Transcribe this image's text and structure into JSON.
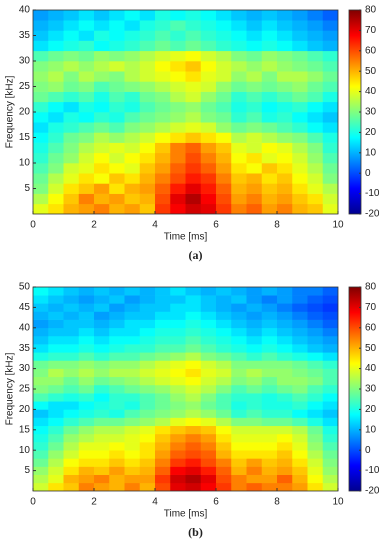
{
  "chart_data": [
    {
      "type": "heatmap",
      "caption": "(a)",
      "xlabel": "Time [ms]",
      "ylabel": "Frequency [kHz]",
      "colormap": "jet",
      "xlim": [
        0,
        10
      ],
      "xticks": [
        0,
        2,
        4,
        6,
        8,
        10
      ],
      "ylim": [
        0,
        40
      ],
      "yticks": [
        5,
        10,
        15,
        20,
        25,
        30,
        35,
        40
      ],
      "zlim": [
        -20,
        80
      ],
      "zticks": [
        -20,
        -10,
        0,
        10,
        20,
        30,
        40,
        50,
        60,
        70,
        80
      ],
      "x": [
        0.25,
        0.75,
        1.25,
        1.75,
        2.25,
        2.75,
        3.25,
        3.75,
        4.25,
        4.75,
        5.25,
        5.75,
        6.25,
        6.75,
        7.25,
        7.75,
        8.25,
        8.75,
        9.25,
        9.75
      ],
      "y": [
        1,
        3,
        5,
        7,
        9,
        11,
        13,
        15,
        17,
        19,
        21,
        23,
        25,
        27,
        29,
        31,
        33,
        35,
        37,
        39
      ],
      "z": [
        [
          40,
          45,
          50,
          52,
          55,
          50,
          52,
          48,
          62,
          68,
          72,
          70,
          62,
          55,
          58,
          52,
          55,
          50,
          48,
          40
        ],
        [
          35,
          42,
          48,
          55,
          50,
          52,
          48,
          50,
          60,
          70,
          75,
          68,
          60,
          52,
          55,
          50,
          52,
          48,
          45,
          38
        ],
        [
          30,
          38,
          45,
          48,
          52,
          45,
          50,
          52,
          58,
          65,
          70,
          65,
          58,
          50,
          52,
          48,
          50,
          45,
          40,
          35
        ],
        [
          28,
          35,
          40,
          45,
          42,
          48,
          45,
          50,
          55,
          60,
          65,
          62,
          55,
          48,
          50,
          45,
          48,
          42,
          38,
          30
        ],
        [
          25,
          30,
          38,
          40,
          45,
          42,
          40,
          48,
          52,
          58,
          62,
          58,
          52,
          45,
          42,
          48,
          45,
          40,
          35,
          28
        ],
        [
          22,
          28,
          32,
          38,
          42,
          38,
          42,
          45,
          50,
          55,
          60,
          55,
          50,
          42,
          45,
          40,
          42,
          38,
          32,
          25
        ],
        [
          20,
          25,
          30,
          35,
          38,
          40,
          38,
          42,
          48,
          55,
          58,
          52,
          48,
          40,
          38,
          42,
          40,
          35,
          30,
          22
        ],
        [
          18,
          22,
          28,
          30,
          35,
          32,
          35,
          38,
          42,
          45,
          48,
          45,
          42,
          35,
          38,
          35,
          32,
          30,
          25,
          20
        ],
        [
          15,
          20,
          22,
          25,
          28,
          25,
          30,
          32,
          35,
          38,
          40,
          38,
          32,
          28,
          30,
          28,
          25,
          22,
          18,
          15
        ],
        [
          18,
          15,
          20,
          18,
          22,
          20,
          25,
          28,
          30,
          32,
          35,
          30,
          28,
          22,
          25,
          20,
          22,
          18,
          15,
          12
        ],
        [
          22,
          18,
          15,
          20,
          18,
          22,
          20,
          25,
          28,
          30,
          32,
          28,
          25,
          20,
          22,
          18,
          20,
          22,
          18,
          15
        ],
        [
          28,
          25,
          22,
          25,
          20,
          25,
          22,
          28,
          30,
          35,
          38,
          32,
          28,
          22,
          25,
          22,
          25,
          28,
          25,
          20
        ],
        [
          30,
          32,
          28,
          30,
          25,
          28,
          30,
          32,
          35,
          38,
          40,
          38,
          32,
          28,
          30,
          28,
          30,
          32,
          28,
          25
        ],
        [
          32,
          35,
          30,
          35,
          32,
          30,
          35,
          38,
          40,
          42,
          45,
          40,
          38,
          32,
          35,
          30,
          35,
          35,
          32,
          28
        ],
        [
          30,
          32,
          35,
          32,
          35,
          38,
          35,
          38,
          42,
          45,
          48,
          42,
          38,
          35,
          32,
          35,
          32,
          30,
          28,
          25
        ],
        [
          25,
          28,
          30,
          28,
          32,
          30,
          32,
          35,
          38,
          40,
          42,
          38,
          35,
          30,
          28,
          32,
          30,
          28,
          25,
          22
        ],
        [
          15,
          18,
          20,
          22,
          18,
          20,
          22,
          25,
          28,
          25,
          28,
          25,
          22,
          20,
          18,
          20,
          18,
          15,
          12,
          10
        ],
        [
          12,
          15,
          18,
          15,
          20,
          18,
          20,
          22,
          25,
          22,
          25,
          22,
          20,
          18,
          15,
          18,
          15,
          12,
          10,
          8
        ],
        [
          10,
          12,
          15,
          18,
          15,
          18,
          15,
          20,
          22,
          25,
          22,
          20,
          18,
          15,
          12,
          15,
          12,
          10,
          8,
          5
        ],
        [
          8,
          10,
          12,
          15,
          12,
          15,
          18,
          15,
          20,
          18,
          20,
          18,
          15,
          12,
          10,
          12,
          10,
          8,
          5,
          2
        ]
      ]
    },
    {
      "type": "heatmap",
      "caption": "(b)",
      "xlabel": "Time [ms]",
      "ylabel": "Frequency [kHz]",
      "colormap": "jet",
      "xlim": [
        0,
        10
      ],
      "xticks": [
        0,
        2,
        4,
        6,
        8,
        10
      ],
      "ylim": [
        0,
        50
      ],
      "yticks": [
        5,
        10,
        15,
        20,
        25,
        30,
        35,
        40,
        45,
        50
      ],
      "zlim": [
        -20,
        80
      ],
      "zticks": [
        -20,
        -10,
        0,
        10,
        20,
        30,
        40,
        50,
        60,
        70,
        80
      ],
      "x": [
        0.25,
        0.75,
        1.25,
        1.75,
        2.25,
        2.75,
        3.25,
        3.75,
        4.25,
        4.75,
        5.25,
        5.75,
        6.25,
        6.75,
        7.25,
        7.75,
        8.25,
        8.75,
        9.25,
        9.75
      ],
      "y": [
        1,
        3,
        5,
        7,
        9,
        11,
        13,
        15,
        17,
        19,
        21,
        23,
        25,
        27,
        29,
        31,
        33,
        35,
        37,
        39,
        41,
        43,
        45,
        47,
        49
      ],
      "z": [
        [
          38,
          45,
          48,
          55,
          52,
          50,
          55,
          50,
          60,
          70,
          72,
          68,
          62,
          55,
          58,
          55,
          55,
          52,
          45,
          38
        ],
        [
          35,
          40,
          50,
          52,
          55,
          50,
          52,
          52,
          62,
          72,
          75,
          70,
          60,
          55,
          52,
          52,
          58,
          50,
          42,
          35
        ],
        [
          32,
          38,
          45,
          50,
          48,
          52,
          48,
          50,
          58,
          68,
          70,
          65,
          58,
          50,
          55,
          50,
          52,
          48,
          40,
          32
        ],
        [
          28,
          35,
          42,
          45,
          45,
          48,
          45,
          48,
          55,
          62,
          65,
          60,
          55,
          48,
          52,
          48,
          50,
          45,
          38,
          30
        ],
        [
          25,
          32,
          38,
          42,
          42,
          45,
          42,
          45,
          52,
          58,
          60,
          58,
          50,
          45,
          45,
          45,
          48,
          42,
          35,
          28
        ],
        [
          22,
          28,
          35,
          40,
          40,
          42,
          40,
          45,
          50,
          55,
          58,
          55,
          48,
          42,
          42,
          42,
          45,
          40,
          32,
          25
        ],
        [
          20,
          25,
          32,
          35,
          38,
          38,
          40,
          42,
          48,
          52,
          55,
          52,
          45,
          40,
          40,
          40,
          42,
          38,
          30,
          22
        ],
        [
          18,
          22,
          28,
          32,
          35,
          35,
          38,
          40,
          45,
          48,
          50,
          48,
          42,
          38,
          38,
          38,
          38,
          35,
          28,
          20
        ],
        [
          15,
          18,
          22,
          25,
          28,
          28,
          30,
          32,
          35,
          40,
          42,
          40,
          35,
          30,
          30,
          28,
          28,
          25,
          20,
          15
        ],
        [
          12,
          15,
          18,
          20,
          22,
          20,
          25,
          28,
          30,
          32,
          35,
          32,
          28,
          22,
          25,
          22,
          22,
          18,
          15,
          12
        ],
        [
          18,
          15,
          15,
          18,
          20,
          22,
          20,
          25,
          28,
          30,
          32,
          28,
          25,
          20,
          22,
          20,
          20,
          22,
          18,
          15
        ],
        [
          25,
          22,
          20,
          22,
          18,
          22,
          22,
          25,
          28,
          32,
          35,
          30,
          25,
          22,
          22,
          20,
          22,
          25,
          22,
          18
        ],
        [
          30,
          28,
          25,
          28,
          22,
          25,
          28,
          30,
          32,
          35,
          38,
          35,
          30,
          25,
          28,
          25,
          28,
          30,
          25,
          22
        ],
        [
          32,
          32,
          28,
          32,
          28,
          30,
          32,
          35,
          38,
          40,
          42,
          38,
          35,
          30,
          32,
          28,
          32,
          32,
          30,
          25
        ],
        [
          30,
          35,
          32,
          35,
          32,
          35,
          35,
          38,
          40,
          42,
          45,
          40,
          38,
          32,
          35,
          32,
          32,
          30,
          28,
          25
        ],
        [
          28,
          30,
          30,
          32,
          30,
          32,
          32,
          35,
          38,
          40,
          42,
          38,
          35,
          30,
          30,
          30,
          30,
          28,
          25,
          22
        ],
        [
          20,
          22,
          22,
          25,
          22,
          25,
          25,
          28,
          30,
          32,
          35,
          30,
          28,
          25,
          22,
          25,
          22,
          20,
          18,
          15
        ],
        [
          15,
          18,
          18,
          20,
          18,
          20,
          22,
          22,
          25,
          25,
          28,
          25,
          22,
          20,
          18,
          20,
          18,
          15,
          12,
          10
        ],
        [
          12,
          15,
          15,
          18,
          15,
          18,
          18,
          20,
          22,
          22,
          25,
          22,
          20,
          18,
          15,
          18,
          15,
          12,
          10,
          8
        ],
        [
          10,
          12,
          12,
          15,
          12,
          15,
          15,
          18,
          20,
          20,
          22,
          20,
          18,
          15,
          12,
          15,
          12,
          10,
          8,
          5
        ],
        [
          8,
          10,
          12,
          12,
          10,
          12,
          15,
          15,
          18,
          18,
          20,
          18,
          15,
          12,
          10,
          12,
          10,
          8,
          5,
          2
        ],
        [
          10,
          12,
          10,
          12,
          8,
          10,
          12,
          12,
          15,
          15,
          18,
          15,
          12,
          10,
          8,
          10,
          8,
          5,
          2,
          0
        ],
        [
          12,
          10,
          12,
          10,
          12,
          8,
          10,
          12,
          12,
          15,
          15,
          12,
          10,
          8,
          10,
          8,
          5,
          2,
          0,
          -2
        ],
        [
          15,
          12,
          10,
          8,
          10,
          12,
          8,
          10,
          12,
          12,
          15,
          12,
          10,
          12,
          8,
          5,
          8,
          5,
          2,
          0
        ],
        [
          18,
          15,
          12,
          10,
          12,
          10,
          12,
          10,
          12,
          15,
          12,
          10,
          12,
          10,
          8,
          10,
          8,
          5,
          5,
          2
        ]
      ]
    }
  ]
}
